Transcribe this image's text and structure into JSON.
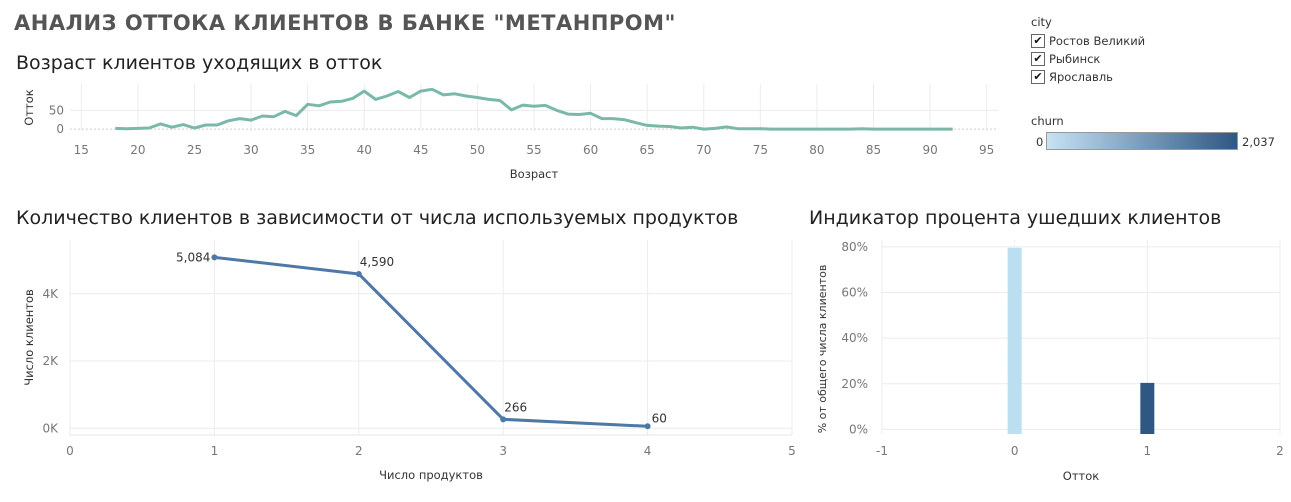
{
  "title": "АНАЛИЗ ОТТОКА КЛИЕНТОВ В БАНКЕ \"МЕТАНПРОМ\"",
  "legend_city": {
    "title": "city",
    "items": [
      "Ростов Великий",
      "Рыбинск",
      "Ярославль"
    ]
  },
  "legend_churn": {
    "title": "churn",
    "min_label": "0",
    "max_label": "2,037",
    "color_low": "#c6e2f3",
    "color_high": "#2f5784"
  },
  "colors": {
    "age_line": "#7ab9aa",
    "products_line": "#4e79a7",
    "bar_0": "#bcdef1",
    "bar_1": "#2f5784"
  },
  "chart_data": [
    {
      "type": "line",
      "title": "Возраст клиентов уходящих в отток",
      "xlabel": "Возраст",
      "ylabel": "Отток",
      "x": [
        18,
        19,
        20,
        21,
        22,
        23,
        24,
        25,
        26,
        27,
        28,
        29,
        30,
        31,
        32,
        33,
        34,
        35,
        36,
        37,
        38,
        39,
        40,
        41,
        42,
        43,
        44,
        45,
        46,
        47,
        48,
        49,
        50,
        51,
        52,
        53,
        54,
        55,
        56,
        57,
        58,
        59,
        60,
        61,
        62,
        63,
        64,
        65,
        66,
        67,
        68,
        69,
        70,
        71,
        72,
        73,
        74,
        75,
        76,
        77,
        78,
        79,
        80,
        81,
        82,
        83,
        84,
        85,
        86,
        87,
        88,
        89,
        90,
        91,
        92
      ],
      "y": [
        2,
        1,
        2,
        3,
        14,
        5,
        12,
        3,
        11,
        11,
        22,
        28,
        24,
        35,
        33,
        47,
        36,
        66,
        62,
        72,
        74,
        82,
        101,
        79,
        88,
        100,
        84,
        101,
        106,
        91,
        94,
        88,
        84,
        79,
        76,
        51,
        64,
        61,
        63,
        50,
        40,
        39,
        42,
        28,
        28,
        25,
        17,
        10,
        8,
        7,
        3,
        5,
        0,
        2,
        6,
        1,
        1,
        1,
        0,
        0,
        0,
        0,
        0,
        0,
        0,
        0,
        1,
        0,
        0,
        0,
        0,
        0,
        0,
        0,
        0
      ],
      "xlim": [
        14,
        96
      ],
      "ylim": [
        -5,
        120
      ],
      "xticks": [
        15,
        20,
        25,
        30,
        35,
        40,
        45,
        50,
        55,
        60,
        65,
        70,
        75,
        80,
        85,
        90,
        95
      ],
      "yticks": [
        0,
        50
      ],
      "ytick_labels": [
        "0",
        "50"
      ],
      "grid": true
    },
    {
      "type": "line",
      "title": "Количество клиентов в зависимости от числа используемых продуктов",
      "xlabel": "Число продуктов",
      "ylabel": "Число клиентов",
      "x": [
        1,
        2,
        3,
        4
      ],
      "y": [
        5084,
        4590,
        266,
        60
      ],
      "data_labels": [
        "5,084",
        "4,590",
        "266",
        "60"
      ],
      "xlim": [
        0,
        5
      ],
      "ylim": [
        -200,
        5600
      ],
      "xticks": [
        0,
        1,
        2,
        3,
        4,
        5
      ],
      "yticks": [
        0,
        2000,
        4000
      ],
      "ytick_labels": [
        "0K",
        "2K",
        "4K"
      ],
      "grid": true
    },
    {
      "type": "bar",
      "title": "Индикатор процента ушедших клиентов",
      "xlabel": "Отток",
      "ylabel": "% от общего числа клиентов",
      "x": [
        0,
        1
      ],
      "values": [
        79.6,
        20.4
      ],
      "xlim": [
        -1,
        2
      ],
      "ylim": [
        -2,
        83
      ],
      "xticks": [
        -1,
        0,
        1,
        2
      ],
      "yticks": [
        0,
        20,
        40,
        60,
        80
      ],
      "ytick_labels": [
        "0%",
        "20%",
        "40%",
        "60%",
        "80%"
      ],
      "grid": true
    }
  ]
}
